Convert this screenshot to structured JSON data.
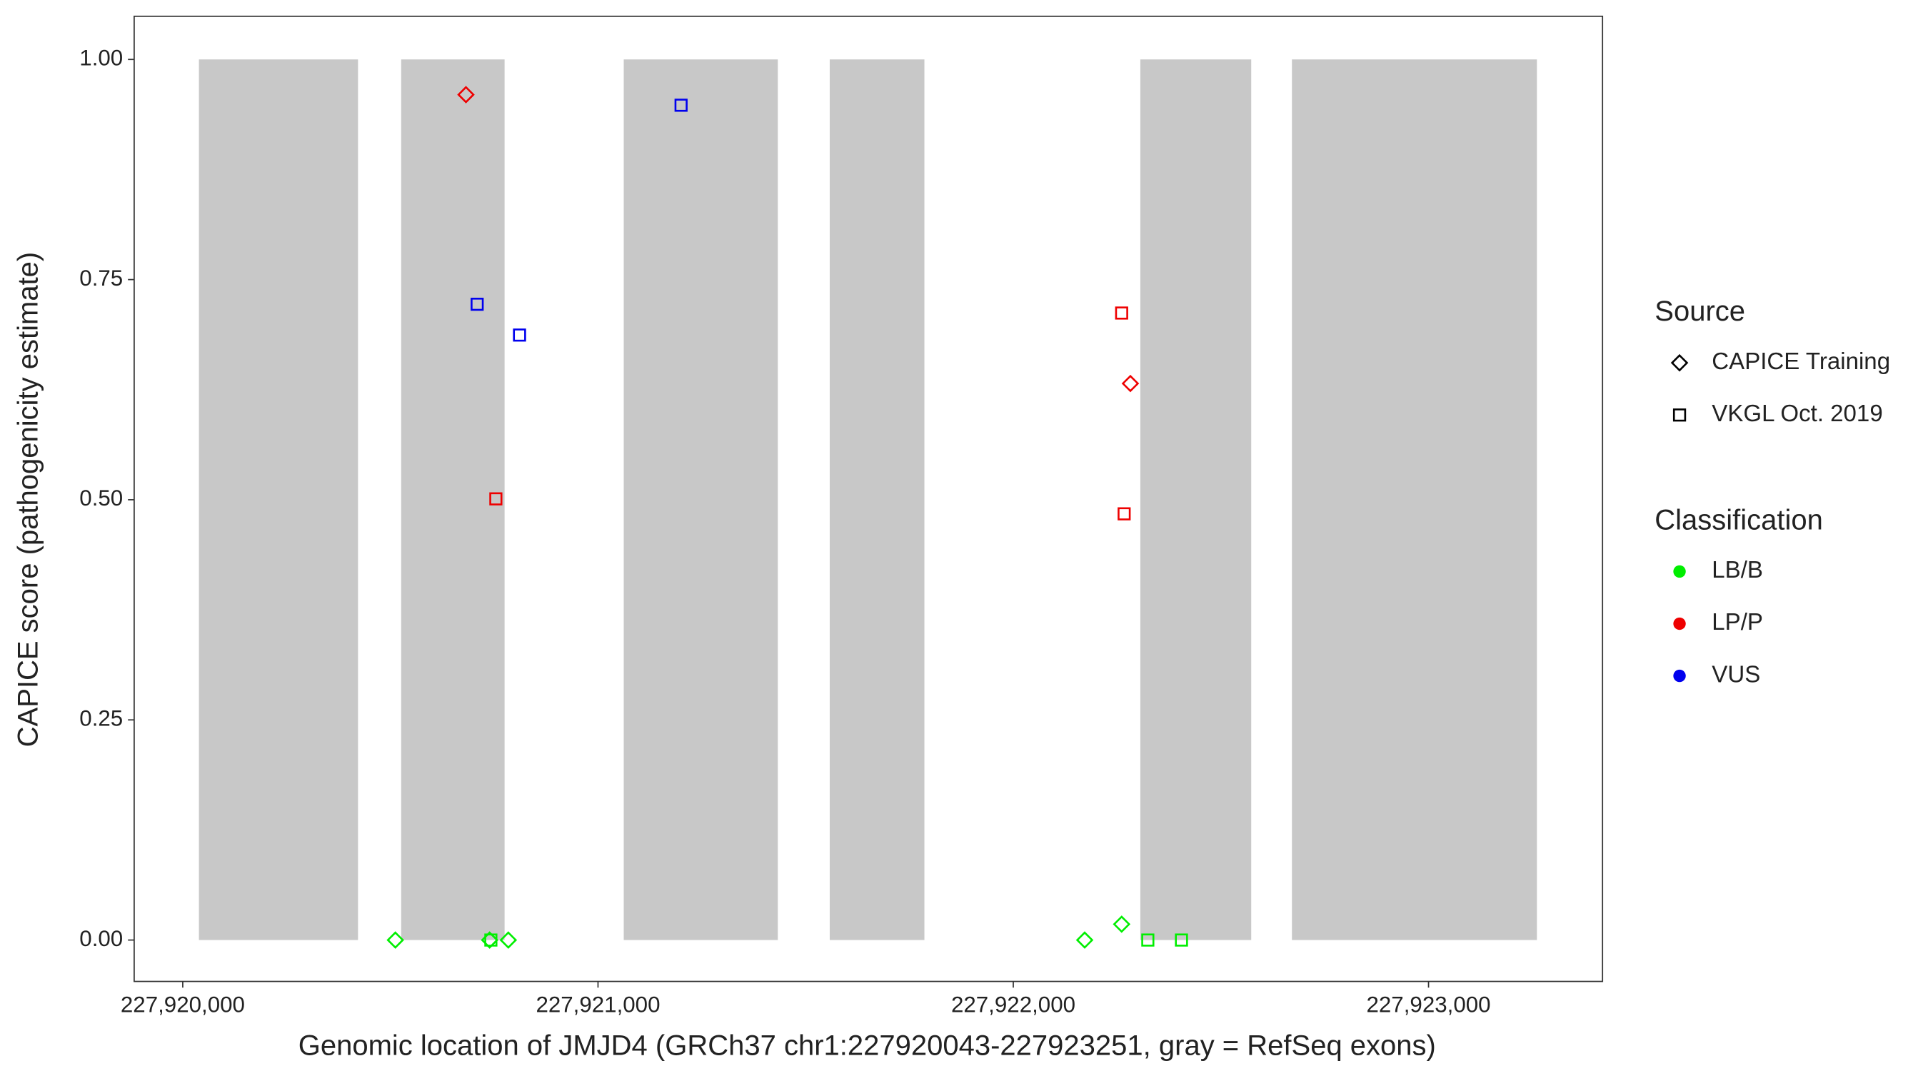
{
  "chart_data": {
    "type": "scatter",
    "x_label": "Genomic location of JMJD4 (GRCh37 chr1:227920043-227923251, gray = RefSeq exons)",
    "y_label": "CAPICE score (pathogenicity estimate)",
    "xlim": [
      227919883,
      227923419
    ],
    "ylim": [
      -0.047,
      1.049
    ],
    "xticks": [
      {
        "value": 227920000,
        "label": "227,920,000"
      },
      {
        "value": 227921000,
        "label": "227,921,000"
      },
      {
        "value": 227922000,
        "label": "227,922,000"
      },
      {
        "value": 227923000,
        "label": "227,923,000"
      }
    ],
    "yticks": [
      {
        "value": 0,
        "label": "0.00"
      },
      {
        "value": 0.25,
        "label": "0.25"
      },
      {
        "value": 0.5,
        "label": "0.50"
      },
      {
        "value": 0.75,
        "label": "0.75"
      },
      {
        "value": 1,
        "label": "1.00"
      }
    ],
    "exon_color": "#c8c8c8",
    "exon_height": 1,
    "exons": [
      [
        227920039,
        227920422
      ],
      [
        227920526,
        227920775
      ],
      [
        227921062,
        227921433
      ],
      [
        227921558,
        227921786
      ],
      [
        227922306,
        227922573
      ],
      [
        227922671,
        227923261
      ]
    ],
    "source_title": "Source",
    "classification_title": "Classification",
    "classifications": [
      {
        "name": "LB/B",
        "color": "#00ee00"
      },
      {
        "name": "LP/P",
        "color": "#ee0000"
      },
      {
        "name": "VUS",
        "color": "#0000ee"
      }
    ],
    "series": [
      {
        "name": "CAPICE Training",
        "shape": "diamond",
        "x": [
          227920682,
          227920512,
          227920739,
          227920784,
          227922172,
          227922261,
          227922282
        ],
        "values": [
          0.96,
          0,
          0,
          0,
          0,
          0.018,
          0.632
        ],
        "classification": [
          "LP/P",
          "LB/B",
          "LB/B",
          "LB/B",
          "LB/B",
          "LB/B",
          "LP/P"
        ]
      },
      {
        "name": "VKGL Oct. 2019",
        "shape": "square",
        "x": [
          227921200,
          227920709,
          227920811,
          227920754,
          227920742,
          227922261,
          227922267,
          227922324,
          227922405
        ],
        "values": [
          0.948,
          0.722,
          0.687,
          0.501,
          0,
          0.712,
          0.484,
          0,
          0
        ],
        "classification": [
          "VUS",
          "VUS",
          "VUS",
          "LP/P",
          "LB/B",
          "LP/P",
          "LP/P",
          "LB/B",
          "LB/B"
        ]
      }
    ]
  }
}
